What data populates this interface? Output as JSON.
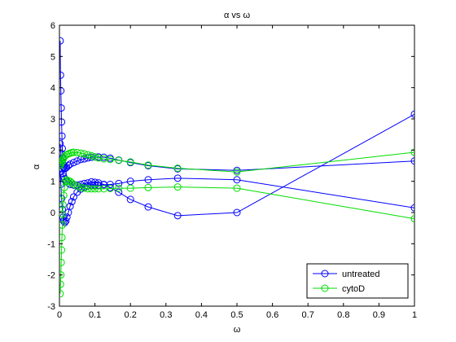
{
  "chart_data": {
    "type": "line",
    "title": "α vs ω",
    "xlabel": "ω",
    "ylabel": "α",
    "xlim": [
      0,
      1
    ],
    "ylim": [
      -3,
      6
    ],
    "xticks": [
      0,
      0.1,
      0.2,
      0.3,
      0.4,
      0.5,
      0.6,
      0.7,
      0.8,
      0.9,
      1
    ],
    "xtick_labels": [
      "0",
      "0.1",
      "0.2",
      "0.3",
      "0.4",
      "0.5",
      "0.6",
      "0.7",
      "0.8",
      "0.9",
      "1"
    ],
    "yticks": [
      -3,
      -2,
      -1,
      0,
      1,
      2,
      3,
      4,
      5,
      6
    ],
    "ytick_labels": [
      "-3",
      "-2",
      "-1",
      "0",
      "1",
      "2",
      "3",
      "4",
      "5",
      "6"
    ],
    "legend_position": "bottom-right",
    "grid": false,
    "marker": "circle",
    "series": [
      {
        "name": "untreated",
        "color": "#0000ff",
        "lines": [
          [
            [
              0.002,
              5.5
            ],
            [
              0.003,
              4.4
            ],
            [
              0.004,
              3.9
            ],
            [
              0.005,
              3.35
            ],
            [
              0.006,
              2.9
            ],
            [
              0.007,
              2.45
            ],
            [
              0.008,
              2.05
            ],
            [
              0.009,
              1.75
            ],
            [
              0.01,
              1.55
            ],
            [
              0.012,
              1.45
            ],
            [
              0.014,
              1.4
            ],
            [
              0.017,
              1.42
            ],
            [
              0.02,
              1.45
            ],
            [
              0.025,
              1.5
            ],
            [
              0.03,
              1.55
            ],
            [
              0.04,
              1.6
            ],
            [
              0.05,
              1.65
            ],
            [
              0.06,
              1.7
            ],
            [
              0.07,
              1.72
            ],
            [
              0.08,
              1.75
            ],
            [
              0.09,
              1.77
            ],
            [
              0.1,
              1.78
            ],
            [
              0.11,
              1.78
            ],
            [
              0.125,
              1.77
            ],
            [
              0.143,
              1.74
            ],
            [
              0.167,
              1.68
            ],
            [
              0.2,
              1.6
            ],
            [
              0.25,
              1.5
            ],
            [
              0.333,
              1.4
            ],
            [
              0.5,
              1.35
            ],
            [
              1,
              1.65
            ]
          ],
          [
            [
              0.002,
              1.3
            ],
            [
              0.004,
              0.9
            ],
            [
              0.006,
              0.45
            ],
            [
              0.008,
              0.1
            ],
            [
              0.01,
              -0.15
            ],
            [
              0.012,
              -0.27
            ],
            [
              0.015,
              -0.32
            ],
            [
              0.018,
              -0.27
            ],
            [
              0.021,
              -0.15
            ],
            [
              0.025,
              0.0
            ],
            [
              0.03,
              0.2
            ],
            [
              0.035,
              0.35
            ],
            [
              0.04,
              0.5
            ],
            [
              0.05,
              0.65
            ],
            [
              0.06,
              0.75
            ],
            [
              0.07,
              0.82
            ],
            [
              0.08,
              0.85
            ],
            [
              0.09,
              0.88
            ],
            [
              0.1,
              0.88
            ],
            [
              0.11,
              0.88
            ],
            [
              0.125,
              0.89
            ],
            [
              0.143,
              0.9
            ],
            [
              0.167,
              0.93
            ],
            [
              0.2,
              1.0
            ],
            [
              0.25,
              1.05
            ],
            [
              0.333,
              1.1
            ],
            [
              0.5,
              1.05
            ],
            [
              1,
              0.15
            ]
          ],
          [
            [
              0.002,
              2.2
            ],
            [
              0.004,
              1.9
            ],
            [
              0.006,
              1.65
            ],
            [
              0.008,
              1.4
            ],
            [
              0.01,
              1.25
            ],
            [
              0.012,
              1.15
            ],
            [
              0.015,
              1.08
            ],
            [
              0.02,
              1.0
            ],
            [
              0.025,
              0.95
            ],
            [
              0.03,
              0.9
            ],
            [
              0.04,
              0.88
            ],
            [
              0.05,
              0.88
            ],
            [
              0.06,
              0.9
            ],
            [
              0.07,
              0.93
            ],
            [
              0.08,
              0.95
            ],
            [
              0.09,
              0.98
            ],
            [
              0.1,
              0.97
            ],
            [
              0.11,
              0.95
            ],
            [
              0.125,
              0.9
            ],
            [
              0.143,
              0.8
            ],
            [
              0.167,
              0.65
            ],
            [
              0.2,
              0.42
            ],
            [
              0.25,
              0.18
            ],
            [
              0.333,
              -0.1
            ],
            [
              0.5,
              0.0
            ],
            [
              1,
              3.15
            ]
          ]
        ]
      },
      {
        "name": "cytoD",
        "color": "#00dd00",
        "lines": [
          [
            [
              0.002,
              -2.6
            ],
            [
              0.003,
              -2.3
            ],
            [
              0.004,
              -2.0
            ],
            [
              0.005,
              -1.6
            ],
            [
              0.006,
              -1.2
            ],
            [
              0.007,
              -0.8
            ],
            [
              0.008,
              -0.4
            ],
            [
              0.009,
              -0.05
            ],
            [
              0.01,
              0.25
            ],
            [
              0.012,
              0.55
            ],
            [
              0.014,
              0.8
            ],
            [
              0.017,
              1.0
            ],
            [
              0.02,
              1.05
            ],
            [
              0.025,
              1.02
            ],
            [
              0.03,
              1.0
            ],
            [
              0.035,
              0.95
            ],
            [
              0.04,
              0.9
            ],
            [
              0.05,
              0.85
            ],
            [
              0.06,
              0.8
            ],
            [
              0.07,
              0.78
            ],
            [
              0.08,
              0.76
            ],
            [
              0.09,
              0.76
            ],
            [
              0.1,
              0.76
            ],
            [
              0.11,
              0.76
            ],
            [
              0.125,
              0.76
            ],
            [
              0.143,
              0.77
            ],
            [
              0.167,
              0.78
            ],
            [
              0.2,
              0.78
            ],
            [
              0.25,
              0.8
            ],
            [
              0.333,
              0.82
            ],
            [
              0.5,
              0.78
            ],
            [
              1,
              -0.2
            ]
          ],
          [
            [
              0.002,
              1.5
            ],
            [
              0.004,
              1.55
            ],
            [
              0.006,
              1.6
            ],
            [
              0.008,
              1.65
            ],
            [
              0.01,
              1.7
            ],
            [
              0.012,
              1.75
            ],
            [
              0.015,
              1.8
            ],
            [
              0.02,
              1.85
            ],
            [
              0.025,
              1.88
            ],
            [
              0.03,
              1.9
            ],
            [
              0.035,
              1.92
            ],
            [
              0.04,
              1.93
            ],
            [
              0.05,
              1.92
            ],
            [
              0.06,
              1.9
            ],
            [
              0.07,
              1.88
            ],
            [
              0.08,
              1.85
            ],
            [
              0.09,
              1.82
            ],
            [
              0.1,
              1.78
            ],
            [
              0.11,
              1.75
            ],
            [
              0.125,
              1.72
            ],
            [
              0.143,
              1.7
            ],
            [
              0.167,
              1.67
            ],
            [
              0.2,
              1.62
            ],
            [
              0.25,
              1.52
            ],
            [
              0.333,
              1.42
            ],
            [
              0.5,
              1.3
            ],
            [
              1,
              1.93
            ]
          ]
        ]
      }
    ]
  }
}
